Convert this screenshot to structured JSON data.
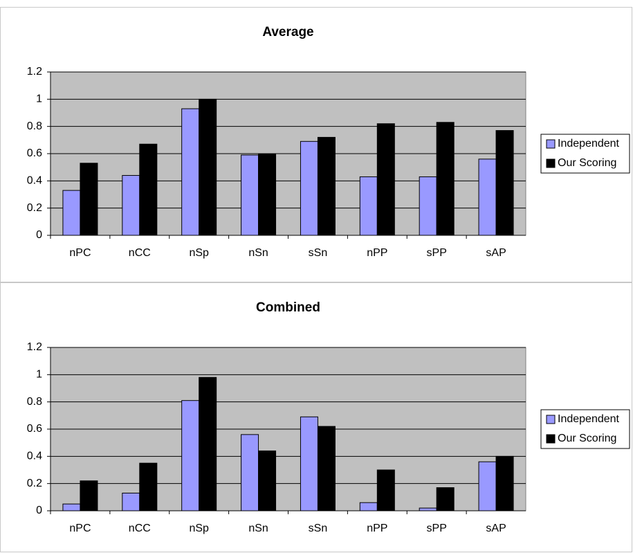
{
  "chart_data": [
    {
      "type": "bar",
      "title": "Average",
      "categories": [
        "nPC",
        "nCC",
        "nSp",
        "nSn",
        "sSn",
        "nPP",
        "sPP",
        "sAP"
      ],
      "series": [
        {
          "name": "Independent",
          "color": "#9999ff",
          "values": [
            0.33,
            0.44,
            0.93,
            0.59,
            0.69,
            0.43,
            0.43,
            0.56
          ]
        },
        {
          "name": "Our Scoring",
          "color": "#000000",
          "values": [
            0.53,
            0.67,
            1.0,
            0.6,
            0.72,
            0.82,
            0.83,
            0.77
          ]
        }
      ],
      "ylim": [
        0,
        1.2
      ],
      "yticks": [
        0,
        0.2,
        0.4,
        0.6,
        0.8,
        1,
        1.2
      ],
      "grid": true,
      "legend": "right"
    },
    {
      "type": "bar",
      "title": "Combined",
      "categories": [
        "nPC",
        "nCC",
        "nSp",
        "nSn",
        "sSn",
        "nPP",
        "sPP",
        "sAP"
      ],
      "series": [
        {
          "name": "Independent",
          "color": "#9999ff",
          "values": [
            0.05,
            0.13,
            0.81,
            0.56,
            0.69,
            0.06,
            0.02,
            0.36
          ]
        },
        {
          "name": "Our Scoring",
          "color": "#000000",
          "values": [
            0.22,
            0.35,
            0.98,
            0.44,
            0.62,
            0.3,
            0.17,
            0.4
          ]
        }
      ],
      "ylim": [
        0,
        1.2
      ],
      "yticks": [
        0,
        0.2,
        0.4,
        0.6,
        0.8,
        1,
        1.2
      ],
      "grid": true,
      "legend": "right"
    }
  ]
}
